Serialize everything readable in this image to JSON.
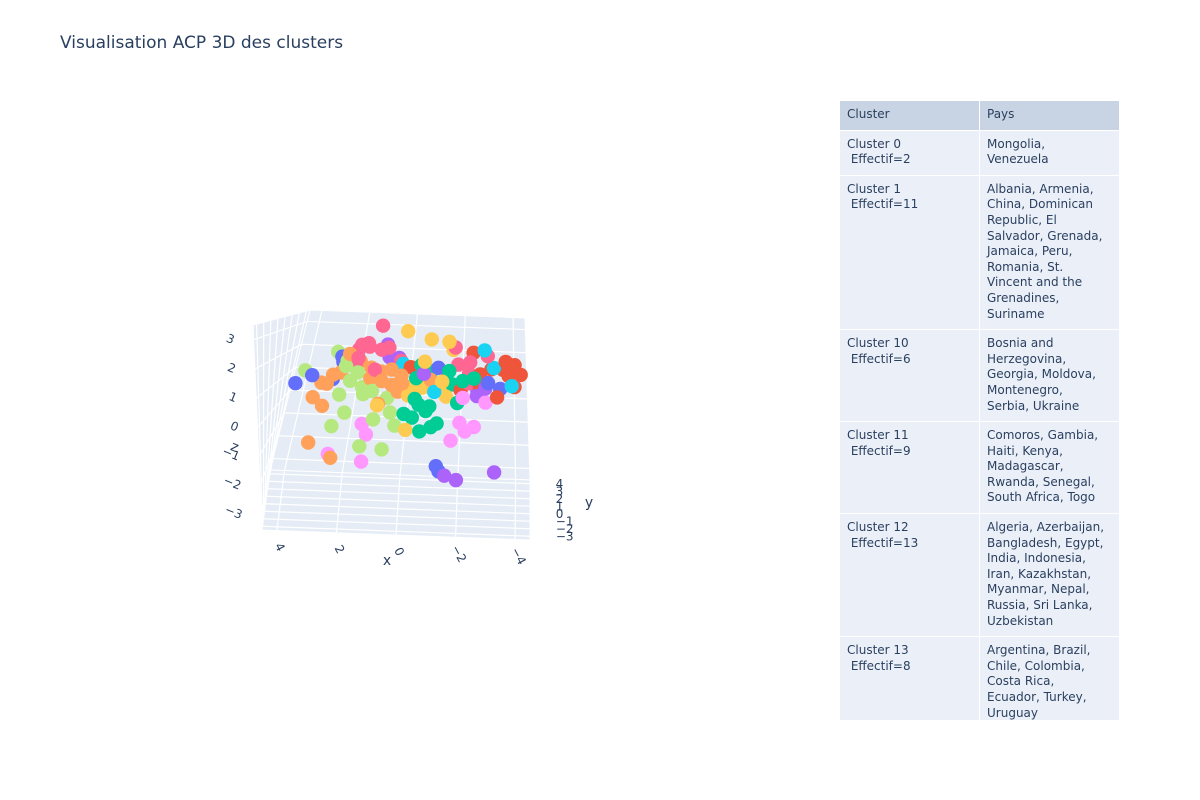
{
  "title": "Visualisation ACP 3D des clusters",
  "chart_data": {
    "type": "scatter",
    "subtype": "3d-scatter",
    "axes": {
      "x": {
        "title": "x",
        "ticks": [
          "4",
          "2",
          "0",
          "−2",
          "−4"
        ]
      },
      "y": {
        "title": "y",
        "ticks": [
          "−3",
          "−2",
          "−1",
          "0",
          "1",
          "2",
          "3",
          "4"
        ]
      },
      "z": {
        "title": "z",
        "ticks": [
          "3",
          "2",
          "1",
          "0",
          "−1",
          "−2",
          "−3"
        ]
      }
    },
    "colors": [
      "#636efa",
      "#ef553b",
      "#00cc96",
      "#ab63fa",
      "#ffa15a",
      "#19d3f3",
      "#ff6692",
      "#b6e880",
      "#ff97ff",
      "#fecb52"
    ],
    "points": [
      {
        "x": 1.2,
        "y": 3.5,
        "z": 3.0,
        "c": 6
      },
      {
        "x": -0.4,
        "y": -2.0,
        "z": 3.0,
        "c": 9
      },
      {
        "x": -1.2,
        "y": -2.0,
        "z": 2.7,
        "c": 9
      },
      {
        "x": -1.8,
        "y": -2.0,
        "z": 2.6,
        "c": 9
      },
      {
        "x": -2.0,
        "y": -1.8,
        "z": 2.4,
        "c": 6
      },
      {
        "x": -1.9,
        "y": -1.2,
        "z": 2.3,
        "c": 9
      },
      {
        "x": -3.0,
        "y": -2.5,
        "z": 2.3,
        "c": 5
      },
      {
        "x": -2.6,
        "y": -1.5,
        "z": 2.2,
        "c": 1
      },
      {
        "x": 0.8,
        "y": 2.5,
        "z": 2.3,
        "c": 3
      },
      {
        "x": 1.6,
        "y": 3.0,
        "z": 2.3,
        "c": 6
      },
      {
        "x": 1.9,
        "y": 3.3,
        "z": 2.2,
        "c": 6
      },
      {
        "x": 1.5,
        "y": 2.6,
        "z": 2.2,
        "c": 6
      },
      {
        "x": 1.0,
        "y": 2.4,
        "z": 2.1,
        "c": 6
      },
      {
        "x": 0.7,
        "y": 2.2,
        "z": 2.2,
        "c": 6
      },
      {
        "x": 2.0,
        "y": 3.3,
        "z": 2.0,
        "c": 6
      },
      {
        "x": 2.9,
        "y": 4.0,
        "z": 1.8,
        "c": 7
      },
      {
        "x": 2.7,
        "y": 4.0,
        "z": 1.6,
        "c": 0
      },
      {
        "x": 2.4,
        "y": 3.5,
        "z": 1.5,
        "c": 7
      },
      {
        "x": 2.6,
        "y": 3.8,
        "z": 1.4,
        "c": 0
      },
      {
        "x": 1.9,
        "y": 3.5,
        "z": 1.5,
        "c": 4
      },
      {
        "x": 2.0,
        "y": 3.0,
        "z": 1.5,
        "c": 6
      },
      {
        "x": 1.4,
        "y": 3.0,
        "z": 1.3,
        "c": 4
      },
      {
        "x": 0.7,
        "y": 2.5,
        "z": 1.8,
        "c": 3
      },
      {
        "x": 0.3,
        "y": 2.2,
        "z": 1.8,
        "c": 3
      },
      {
        "x": 0.2,
        "y": 2.0,
        "z": 1.7,
        "c": 6
      },
      {
        "x": 0.1,
        "y": 1.8,
        "z": 1.6,
        "c": 5
      },
      {
        "x": -0.2,
        "y": 1.6,
        "z": 1.5,
        "c": 1
      },
      {
        "x": -0.6,
        "y": 1.4,
        "z": 1.6,
        "c": 2
      },
      {
        "x": -1.0,
        "y": 1.2,
        "z": 1.4,
        "c": 2
      },
      {
        "x": -1.6,
        "y": 0.8,
        "z": 1.4,
        "c": 1
      },
      {
        "x": -2.0,
        "y": 0.4,
        "z": 1.7,
        "c": 6
      },
      {
        "x": -2.4,
        "y": 0.0,
        "z": 1.4,
        "c": 6
      },
      {
        "x": -2.8,
        "y": -0.4,
        "z": 1.4,
        "c": 1
      },
      {
        "x": -3.2,
        "y": -0.8,
        "z": 1.6,
        "c": 1
      },
      {
        "x": -3.6,
        "y": -1.2,
        "z": 1.6,
        "c": 1
      },
      {
        "x": -3.3,
        "y": -2.0,
        "z": 1.7,
        "c": 5
      },
      {
        "x": -3.8,
        "y": -1.5,
        "z": 1.4,
        "c": 1
      },
      {
        "x": -3.1,
        "y": -1.8,
        "z": 1.2,
        "c": 0
      },
      {
        "x": -3.9,
        "y": -2.0,
        "z": 1.1,
        "c": 5
      },
      {
        "x": -4.0,
        "y": -1.0,
        "z": 1.0,
        "c": 1
      },
      {
        "x": -3.5,
        "y": -0.5,
        "z": 0.9,
        "c": 0
      },
      {
        "x": -2.7,
        "y": -0.2,
        "z": 0.8,
        "c": 3
      },
      {
        "x": -2.1,
        "y": 0.1,
        "z": 0.8,
        "c": 1
      },
      {
        "x": -1.8,
        "y": 0.2,
        "z": 1.0,
        "c": 2
      },
      {
        "x": -1.4,
        "y": 0.6,
        "z": 0.9,
        "c": 9
      },
      {
        "x": -1.0,
        "y": 0.8,
        "z": 1.1,
        "c": 4
      },
      {
        "x": -0.7,
        "y": 0.9,
        "z": 0.8,
        "c": 9
      },
      {
        "x": -0.3,
        "y": 1.2,
        "z": 0.8,
        "c": 9
      },
      {
        "x": 0.1,
        "y": 1.3,
        "z": 1.2,
        "c": 4
      },
      {
        "x": 0.5,
        "y": 1.6,
        "z": 1.4,
        "c": 4
      },
      {
        "x": 0.9,
        "y": 1.8,
        "z": 1.3,
        "c": 4
      },
      {
        "x": 1.3,
        "y": 2.0,
        "z": 1.0,
        "c": 4
      },
      {
        "x": 1.8,
        "y": 2.2,
        "z": 1.2,
        "c": 7
      },
      {
        "x": 2.3,
        "y": 2.5,
        "z": 1.4,
        "c": 7
      },
      {
        "x": 2.5,
        "y": 2.8,
        "z": 1.1,
        "c": 4
      },
      {
        "x": 2.8,
        "y": 3.0,
        "z": 0.8,
        "c": 0
      },
      {
        "x": 3.3,
        "y": 3.8,
        "z": 0.5,
        "c": 4
      },
      {
        "x": 2.1,
        "y": 2.6,
        "z": 0.8,
        "c": 7
      },
      {
        "x": 1.6,
        "y": 2.3,
        "z": 0.6,
        "c": 7
      },
      {
        "x": 1.2,
        "y": 2.0,
        "z": 0.5,
        "c": 7
      },
      {
        "x": 0.6,
        "y": 1.6,
        "z": 0.3,
        "c": 7
      },
      {
        "x": 0.2,
        "y": 1.2,
        "z": 0.6,
        "c": 4
      },
      {
        "x": -0.2,
        "y": 0.9,
        "z": 0.5,
        "c": 9
      },
      {
        "x": -0.6,
        "y": 0.6,
        "z": 0.2,
        "c": 2
      },
      {
        "x": -1.0,
        "y": 0.2,
        "z": 0.2,
        "c": 2
      },
      {
        "x": -1.6,
        "y": -0.2,
        "z": 0.6,
        "c": 9
      },
      {
        "x": -2.0,
        "y": -0.4,
        "z": 0.4,
        "c": 2
      },
      {
        "x": -2.2,
        "y": -0.6,
        "z": 0.6,
        "c": 8
      },
      {
        "x": -2.7,
        "y": -1.0,
        "z": 0.7,
        "c": 3
      },
      {
        "x": -3.0,
        "y": -1.2,
        "z": 0.5,
        "c": 8
      },
      {
        "x": 3.0,
        "y": 3.0,
        "z": 0.6,
        "c": 4
      },
      {
        "x": 2.4,
        "y": 2.2,
        "z": 0.3,
        "c": 7
      },
      {
        "x": 0.9,
        "y": 1.0,
        "z": 0.1,
        "c": 9
      },
      {
        "x": 0.4,
        "y": 0.6,
        "z": -0.1,
        "c": 7
      },
      {
        "x": -0.1,
        "y": 0.3,
        "z": -0.1,
        "c": 2
      },
      {
        "x": -0.4,
        "y": 0.1,
        "z": -0.2,
        "c": 2
      },
      {
        "x": -0.9,
        "y": -0.3,
        "z": 0.1,
        "c": 2
      },
      {
        "x": -1.3,
        "y": -0.6,
        "z": -0.3,
        "c": 2
      },
      {
        "x": -2.1,
        "y": -1.1,
        "z": -0.2,
        "c": 8
      },
      {
        "x": -2.6,
        "y": -1.4,
        "z": -0.3,
        "c": 8
      },
      {
        "x": 2.1,
        "y": 1.6,
        "z": -0.3,
        "c": 7
      },
      {
        "x": 1.0,
        "y": 0.8,
        "z": -0.4,
        "c": 7
      },
      {
        "x": 1.4,
        "y": 0.9,
        "z": -0.6,
        "c": 8
      },
      {
        "x": 0.2,
        "y": 0.1,
        "z": -0.5,
        "c": 7
      },
      {
        "x": -0.2,
        "y": -0.2,
        "z": -0.6,
        "c": 9
      },
      {
        "x": -0.7,
        "y": -0.5,
        "z": -0.6,
        "c": 2
      },
      {
        "x": -1.1,
        "y": -0.8,
        "z": -0.4,
        "c": 2
      },
      {
        "x": -1.8,
        "y": -1.2,
        "z": -0.8,
        "c": 8
      },
      {
        "x": -2.3,
        "y": -1.8,
        "z": -0.4,
        "c": 8
      },
      {
        "x": 2.5,
        "y": 1.4,
        "z": -0.8,
        "c": 7
      },
      {
        "x": 1.2,
        "y": 0.4,
        "z": -0.9,
        "c": 8
      },
      {
        "x": 1.4,
        "y": 0.2,
        "z": -1.3,
        "c": 7
      },
      {
        "x": 3.3,
        "y": 2.0,
        "z": -1.6,
        "c": 4
      },
      {
        "x": 2.4,
        "y": 0.4,
        "z": -1.8,
        "c": 4
      },
      {
        "x": 2.5,
        "y": 0.6,
        "z": -1.7,
        "c": 8
      },
      {
        "x": 1.3,
        "y": -0.1,
        "z": -1.8,
        "c": 8
      },
      {
        "x": -1.3,
        "y": -1.1,
        "z": -1.7,
        "c": 0
      },
      {
        "x": -1.4,
        "y": -1.5,
        "z": -1.8,
        "c": 0
      },
      {
        "x": -1.6,
        "y": -1.7,
        "z": -1.9,
        "c": 3
      },
      {
        "x": -2.0,
        "y": -1.9,
        "z": -2.0,
        "c": 3
      },
      {
        "x": -3.3,
        "y": -2.6,
        "z": -1.6,
        "c": 3
      },
      {
        "x": 0.6,
        "y": -0.3,
        "z": -1.3,
        "c": 7
      },
      {
        "x": 2.6,
        "y": 1.4,
        "z": 1.2,
        "c": 4
      },
      {
        "x": 4.0,
        "y": 3.8,
        "z": 1.0,
        "c": 7
      },
      {
        "x": 3.7,
        "y": 3.8,
        "z": 0.8,
        "c": 0
      },
      {
        "x": 4.3,
        "y": 4.0,
        "z": 0.4,
        "c": 0
      },
      {
        "x": 3.4,
        "y": 2.6,
        "z": 0.1,
        "c": 4
      },
      {
        "x": 3.0,
        "y": 2.4,
        "z": -0.2,
        "c": 4
      },
      {
        "x": -0.9,
        "y": -1.0,
        "z": 1.9,
        "c": 9
      },
      {
        "x": -1.5,
        "y": -1.0,
        "z": 1.2,
        "c": 9
      },
      {
        "x": -2.5,
        "y": -2.0,
        "z": 1.9,
        "c": 6
      },
      {
        "x": -3.1,
        "y": -2.2,
        "z": 2.1,
        "c": 6
      },
      {
        "x": -3.7,
        "y": -2.2,
        "z": 1.9,
        "c": 1
      },
      {
        "x": -4.0,
        "y": -2.5,
        "z": 1.8,
        "c": 1
      },
      {
        "x": -4.2,
        "y": -2.8,
        "z": 1.5,
        "c": 1
      },
      {
        "x": -3.0,
        "y": -1.5,
        "z": 1.0,
        "c": 3
      },
      {
        "x": -3.4,
        "y": -1.5,
        "z": 0.7,
        "c": 1
      },
      {
        "x": -2.6,
        "y": -1.0,
        "z": 1.3,
        "c": 2
      },
      {
        "x": -2.2,
        "y": -0.8,
        "z": 1.2,
        "c": 2
      },
      {
        "x": -0.5,
        "y": 0.4,
        "z": 1.2,
        "c": 2
      },
      {
        "x": 0.0,
        "y": 0.5,
        "z": 1.0,
        "c": 4
      },
      {
        "x": 0.4,
        "y": 0.8,
        "z": 0.9,
        "c": 4
      },
      {
        "x": 0.8,
        "y": 1.2,
        "z": 1.0,
        "c": 4
      },
      {
        "x": 1.1,
        "y": 1.5,
        "z": 1.4,
        "c": 6
      },
      {
        "x": 1.8,
        "y": 2.0,
        "z": 1.8,
        "c": 6
      },
      {
        "x": 2.2,
        "y": 2.5,
        "z": 1.9,
        "c": 4
      },
      {
        "x": 1.5,
        "y": 1.8,
        "z": 0.4,
        "c": 7
      },
      {
        "x": 0.9,
        "y": 1.4,
        "z": 0.1,
        "c": 4
      },
      {
        "x": -0.5,
        "y": -0.1,
        "z": 0.5,
        "c": 2
      },
      {
        "x": -1.2,
        "y": -0.5,
        "z": 0.8,
        "c": 5
      },
      {
        "x": -0.8,
        "y": 0.0,
        "z": 1.4,
        "c": 3
      },
      {
        "x": -1.3,
        "y": 0.2,
        "z": 1.6,
        "c": 0
      },
      {
        "x": -1.7,
        "y": -0.1,
        "z": 1.5,
        "c": 2
      },
      {
        "x": -2.4,
        "y": -0.5,
        "z": 1.1,
        "c": 6
      },
      {
        "x": -2.8,
        "y": -0.8,
        "z": 1.0,
        "c": 1
      }
    ]
  },
  "table": {
    "headers": [
      "Cluster",
      "Pays"
    ],
    "rows": [
      {
        "cluster": [
          "Cluster 0",
          " Effectif=2"
        ],
        "pays": [
          "Mongolia,",
          "Venezuela"
        ]
      },
      {
        "cluster": [
          "Cluster 1",
          " Effectif=11"
        ],
        "pays": [
          "Albania, Armenia,",
          "China, Dominican",
          "Republic, El",
          "Salvador, Grenada,",
          "Jamaica, Peru,",
          "Romania, St.",
          "Vincent and the",
          "Grenadines,",
          "Suriname"
        ]
      },
      {
        "cluster": [
          "Cluster 10",
          " Effectif=6"
        ],
        "pays": [
          "Bosnia and",
          "Herzegovina,",
          "Georgia, Moldova,",
          "Montenegro,",
          "Serbia, Ukraine"
        ]
      },
      {
        "cluster": [
          "Cluster 11",
          " Effectif=9"
        ],
        "pays": [
          "Comoros, Gambia,",
          "Haiti, Kenya,",
          "Madagascar,",
          "Rwanda, Senegal,",
          "South Africa, Togo"
        ]
      },
      {
        "cluster": [
          "Cluster 12",
          " Effectif=13"
        ],
        "pays": [
          "Algeria, Azerbaijan,",
          "Bangladesh, Egypt,",
          "India, Indonesia,",
          "Iran, Kazakhstan,",
          "Myanmar, Nepal,",
          "Russia, Sri Lanka,",
          "Uzbekistan"
        ]
      },
      {
        "cluster": [
          "Cluster 13",
          " Effectif=8"
        ],
        "pays": [
          "Argentina, Brazil,",
          "Chile, Colombia,",
          "Costa Rica,",
          "Ecuador, Turkey,",
          "Uruguay"
        ]
      }
    ]
  }
}
